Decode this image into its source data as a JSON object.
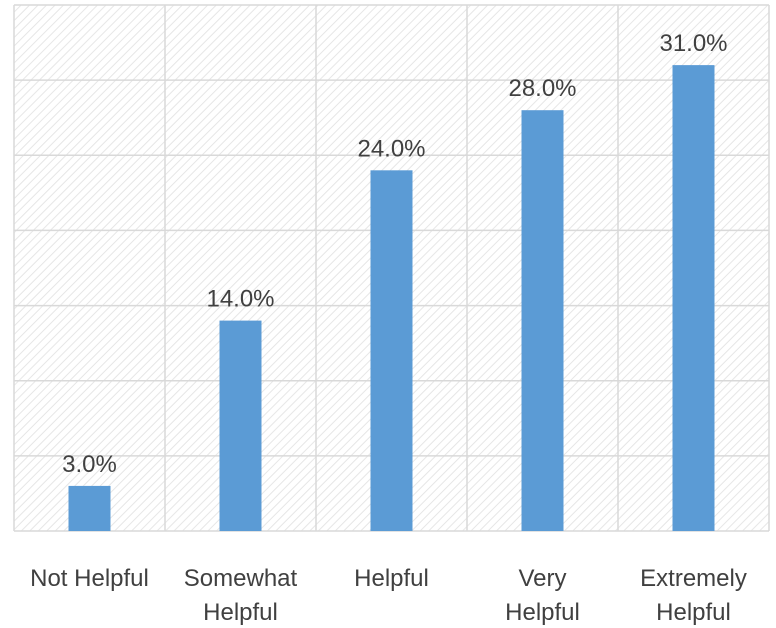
{
  "chart_data": {
    "type": "bar",
    "categories": [
      [
        "Not Helpful"
      ],
      [
        "Somewhat",
        "Helpful"
      ],
      [
        "Helpful"
      ],
      [
        "Very",
        "Helpful"
      ],
      [
        "Extremely",
        "Helpful"
      ]
    ],
    "values": [
      3.0,
      14.0,
      24.0,
      28.0,
      31.0
    ],
    "data_labels": [
      "3.0%",
      "14.0%",
      "24.0%",
      "28.0%",
      "31.0%"
    ],
    "ylim": [
      0,
      35
    ],
    "grid": true,
    "legend": "none",
    "colors": {
      "bar": "#5B9BD5",
      "grid": "#D9D9D9",
      "hatch": "#E6E6E6",
      "text": "#404040"
    }
  }
}
